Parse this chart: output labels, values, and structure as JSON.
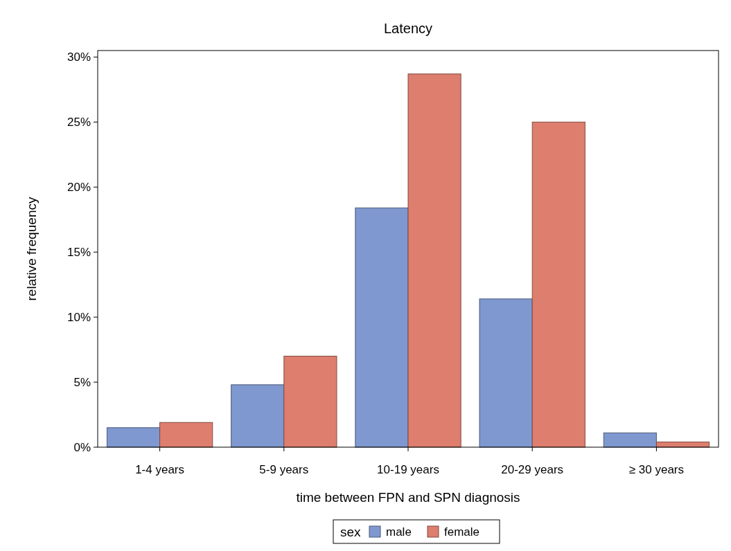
{
  "chart_data": {
    "type": "bar",
    "title": "Latency",
    "xlabel": "time between FPN and SPN diagnosis",
    "ylabel": "relative frequency",
    "legend_title": "sex",
    "categories": [
      "1-4 years",
      "5-9 years",
      "10-19 years",
      "20-29 years",
      "≥ 30 years"
    ],
    "series": [
      {
        "name": "male",
        "color": "#7f98cf",
        "values": [
          1.5,
          4.8,
          18.4,
          11.4,
          1.1
        ]
      },
      {
        "name": "female",
        "color": "#dd7e6e",
        "values": [
          1.9,
          7.0,
          28.7,
          25.0,
          0.4
        ]
      }
    ],
    "ylim": [
      0,
      30.5
    ],
    "yticks": [
      {
        "value": 0,
        "label": "0%"
      },
      {
        "value": 5,
        "label": "5%"
      },
      {
        "value": 10,
        "label": "10%"
      },
      {
        "value": 15,
        "label": "15%"
      },
      {
        "value": 20,
        "label": "20%"
      },
      {
        "value": 25,
        "label": "25%"
      },
      {
        "value": 30,
        "label": "30%"
      }
    ],
    "grid": false,
    "legend": "bottom"
  }
}
